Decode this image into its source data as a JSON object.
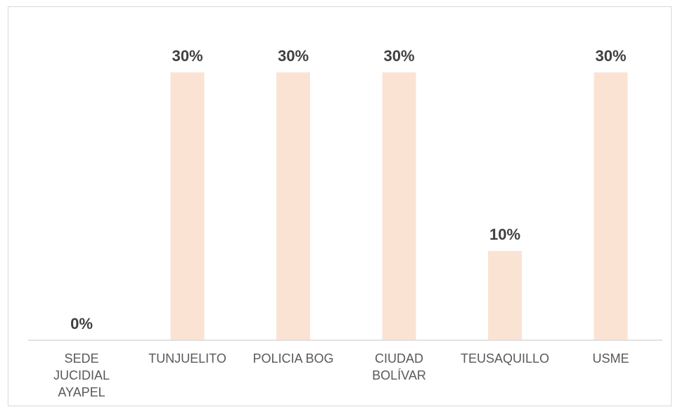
{
  "chart_data": {
    "type": "bar",
    "categories": [
      [
        "SEDE",
        "JUCIDIAL",
        "AYAPEL"
      ],
      [
        "TUNJUELITO"
      ],
      [
        "POLICIA BOG"
      ],
      [
        "CIUDAD",
        "BOLÍVAR"
      ],
      [
        "TEUSAQUILLO"
      ],
      [
        "USME"
      ]
    ],
    "values": [
      0,
      30,
      30,
      30,
      10,
      30
    ],
    "data_labels": [
      "0%",
      "30%",
      "30%",
      "30%",
      "10%",
      "30%"
    ],
    "title": "",
    "xlabel": "",
    "ylabel": "",
    "ylim": [
      0,
      30
    ],
    "grid": false,
    "legend": "none",
    "colors": {
      "bar": "#fbe3d4",
      "axis": "#d9d9d9",
      "value_text": "#404040",
      "category_text": "#595959"
    }
  }
}
